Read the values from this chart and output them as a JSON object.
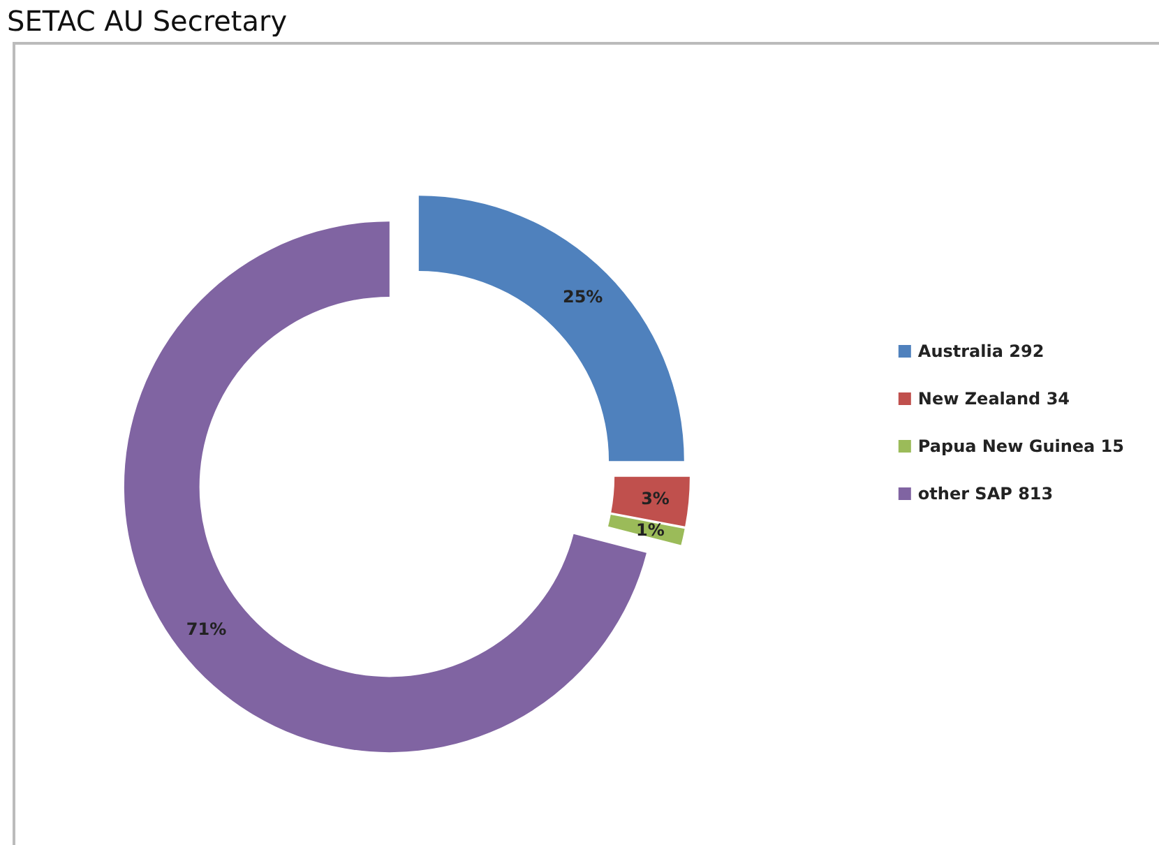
{
  "chart_data": {
    "type": "donut",
    "title": "SETAC AU Secretary",
    "categories": [
      "Australia 292",
      "New Zealand 34",
      "Papua New Guinea 15",
      "other SAP 813"
    ],
    "values": [
      25,
      3,
      1,
      71
    ],
    "colors": [
      "#4f81bd",
      "#c0504d",
      "#9bbb59",
      "#8064a2"
    ],
    "value_labels": [
      "25%",
      "3%",
      "1%",
      "71%"
    ],
    "legend": "right"
  }
}
